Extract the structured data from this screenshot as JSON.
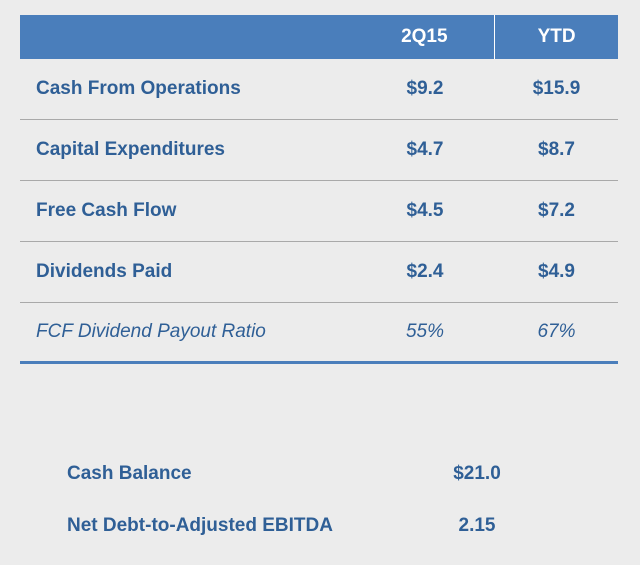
{
  "table": {
    "headers": {
      "label": "",
      "col1": "2Q15",
      "col2": "YTD"
    },
    "rows": [
      {
        "label": "Cash From Operations",
        "q": "$9.2",
        "ytd": "$15.9"
      },
      {
        "label": "Capital Expenditures",
        "q": "$4.7",
        "ytd": "$8.7"
      },
      {
        "label": "Free Cash Flow",
        "q": "$4.5",
        "ytd": "$7.2"
      },
      {
        "label": "Dividends Paid",
        "q": "$2.4",
        "ytd": "$4.9"
      },
      {
        "label": "FCF Dividend Payout Ratio",
        "q": "55%",
        "ytd": "67%"
      }
    ]
  },
  "summary": {
    "rows": [
      {
        "label": "Cash Balance",
        "value": "$21.0"
      },
      {
        "label": "Net Debt-to-Adjusted EBITDA",
        "value": "2.15"
      }
    ]
  },
  "colors": {
    "header_bg": "#4a7ebb",
    "text": "#2f5f96",
    "background": "#ececec",
    "rule": "#a9a9a9"
  }
}
